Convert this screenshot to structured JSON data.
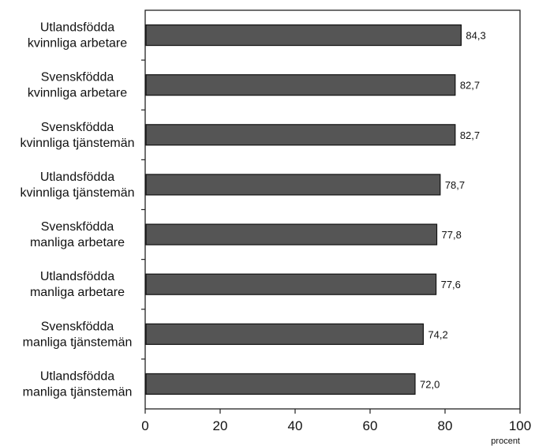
{
  "chart_data": {
    "type": "bar",
    "orientation": "horizontal",
    "categories": [
      [
        "Utlandsfödda",
        "kvinnliga arbetare"
      ],
      [
        "Svenskfödda",
        "kvinnliga arbetare"
      ],
      [
        "Svenskfödda",
        "kvinnliga tjänstemän"
      ],
      [
        "Utlandsfödda",
        "kvinnliga tjänstemän"
      ],
      [
        "Svenskfödda",
        "manliga arbetare"
      ],
      [
        "Utlandsfödda",
        "manliga arbetare"
      ],
      [
        "Svenskfödda",
        "manliga tjänstemän"
      ],
      [
        "Utlandsfödda",
        "manliga tjänstemän"
      ]
    ],
    "values": [
      84.3,
      82.7,
      82.7,
      78.7,
      77.8,
      77.6,
      74.2,
      72.0
    ],
    "value_labels": [
      "84,3",
      "82,7",
      "82,7",
      "78,7",
      "77,8",
      "77,6",
      "74,2",
      "72,0"
    ],
    "xlim": [
      0,
      100
    ],
    "xticks": [
      0,
      20,
      40,
      60,
      80,
      100
    ],
    "xunit": "procent",
    "bar_color": "#555555",
    "bar_edge_color": "#111111",
    "grid": false,
    "legend": "none"
  }
}
